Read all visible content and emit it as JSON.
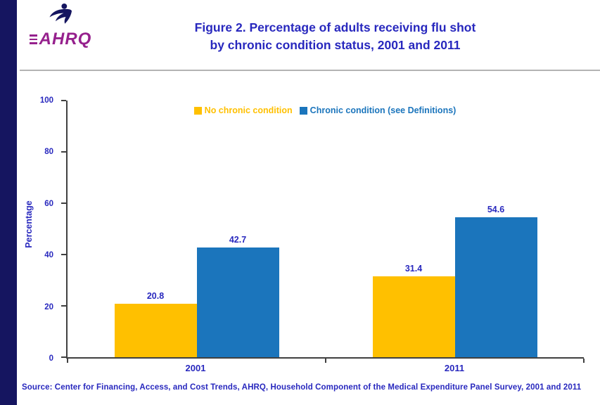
{
  "accent_colors": {
    "title_blue": "#2828BE",
    "bar_yellow": "#FFC000",
    "bar_blue": "#1B75BC",
    "logo_purple": "#96218D",
    "stripe_navy": "#151560",
    "axis_gray": "#404040"
  },
  "header": {
    "logo_wordmark": "AHRQ",
    "hhs_icon": "hhs-eagle",
    "title_line1": "Figure 2. Percentage of adults receiving flu shot",
    "title_line2": "by chronic condition status, 2001 and 2011"
  },
  "chart_data": {
    "type": "bar",
    "categories": [
      "2001",
      "2011"
    ],
    "series": [
      {
        "name": "No chronic condition",
        "color": "#FFC000",
        "values": [
          20.8,
          31.4
        ]
      },
      {
        "name": "Chronic condition (see Definitions)",
        "color": "#1B75BC",
        "values": [
          42.7,
          54.6
        ]
      }
    ],
    "title": "Figure 2. Percentage of adults receiving flu shot by chronic condition status, 2001 and 2011",
    "xlabel": "",
    "ylabel": "Percentage",
    "ylim": [
      0,
      100
    ],
    "yticks": [
      0,
      20,
      40,
      60,
      80,
      100
    ],
    "grid": false,
    "legend_position": "top-center",
    "value_labels": true
  },
  "footer": {
    "source": "Source: Center for Financing, Access, and Cost Trends, AHRQ, Household Component of the Medical Expenditure Panel Survey, 2001 and 2011"
  }
}
